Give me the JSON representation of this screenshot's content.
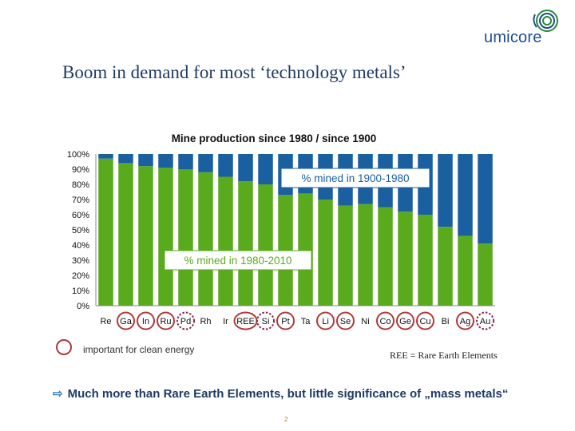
{
  "slide": {
    "title": "Boom in demand for most ‘technology metals’",
    "logo_text": "umicore",
    "page_number": "2",
    "legend_text": "important for clean energy",
    "ree_note": "REE = Rare Earth Elements",
    "takeaway_arrow": "⇨",
    "takeaway": "Much more than Rare Earth Elements, but little significance of „mass metals“"
  },
  "colors": {
    "green": "#5aaa1e",
    "blue": "#1a5fa0",
    "circle_solid": "#b03a3a",
    "circle_dashed": "#8b2a4a",
    "brand_blue": "#1f4e8c"
  },
  "chart_data": {
    "type": "bar",
    "stacked": true,
    "title": "Mine production since 1980 / since 1900",
    "categories": [
      "Re",
      "Ga",
      "In",
      "Ru",
      "Pd",
      "Rh",
      "Ir",
      "REE",
      "Si",
      "Pt",
      "Ta",
      "Li",
      "Se",
      "Ni",
      "Co",
      "Ge",
      "Cu",
      "Bi",
      "Ag",
      "Au"
    ],
    "series": [
      {
        "name": "% mined in 1980-2010",
        "color": "#5aaa1e",
        "values": [
          97,
          94,
          92,
          91,
          90,
          88,
          85,
          82,
          80,
          73,
          74,
          70,
          66,
          67,
          65,
          62,
          60,
          52,
          46,
          41
        ]
      },
      {
        "name": "% mined in 1900-1980",
        "color": "#1a5fa0",
        "values": [
          3,
          6,
          8,
          9,
          10,
          12,
          15,
          18,
          20,
          27,
          26,
          30,
          34,
          33,
          35,
          38,
          40,
          48,
          54,
          59
        ]
      }
    ],
    "yticks": [
      "100%",
      "90%",
      "80%",
      "70%",
      "60%",
      "50%",
      "40%",
      "30%",
      "20%",
      "10%",
      "0%"
    ],
    "ylim": [
      0,
      100
    ],
    "highlight_solid": [
      "Ga",
      "In",
      "Ru",
      "REE",
      "Pt",
      "Li",
      "Se",
      "Co",
      "Ge",
      "Cu",
      "Ag"
    ],
    "highlight_dashed": [
      "Pd",
      "Si",
      "Au"
    ]
  }
}
